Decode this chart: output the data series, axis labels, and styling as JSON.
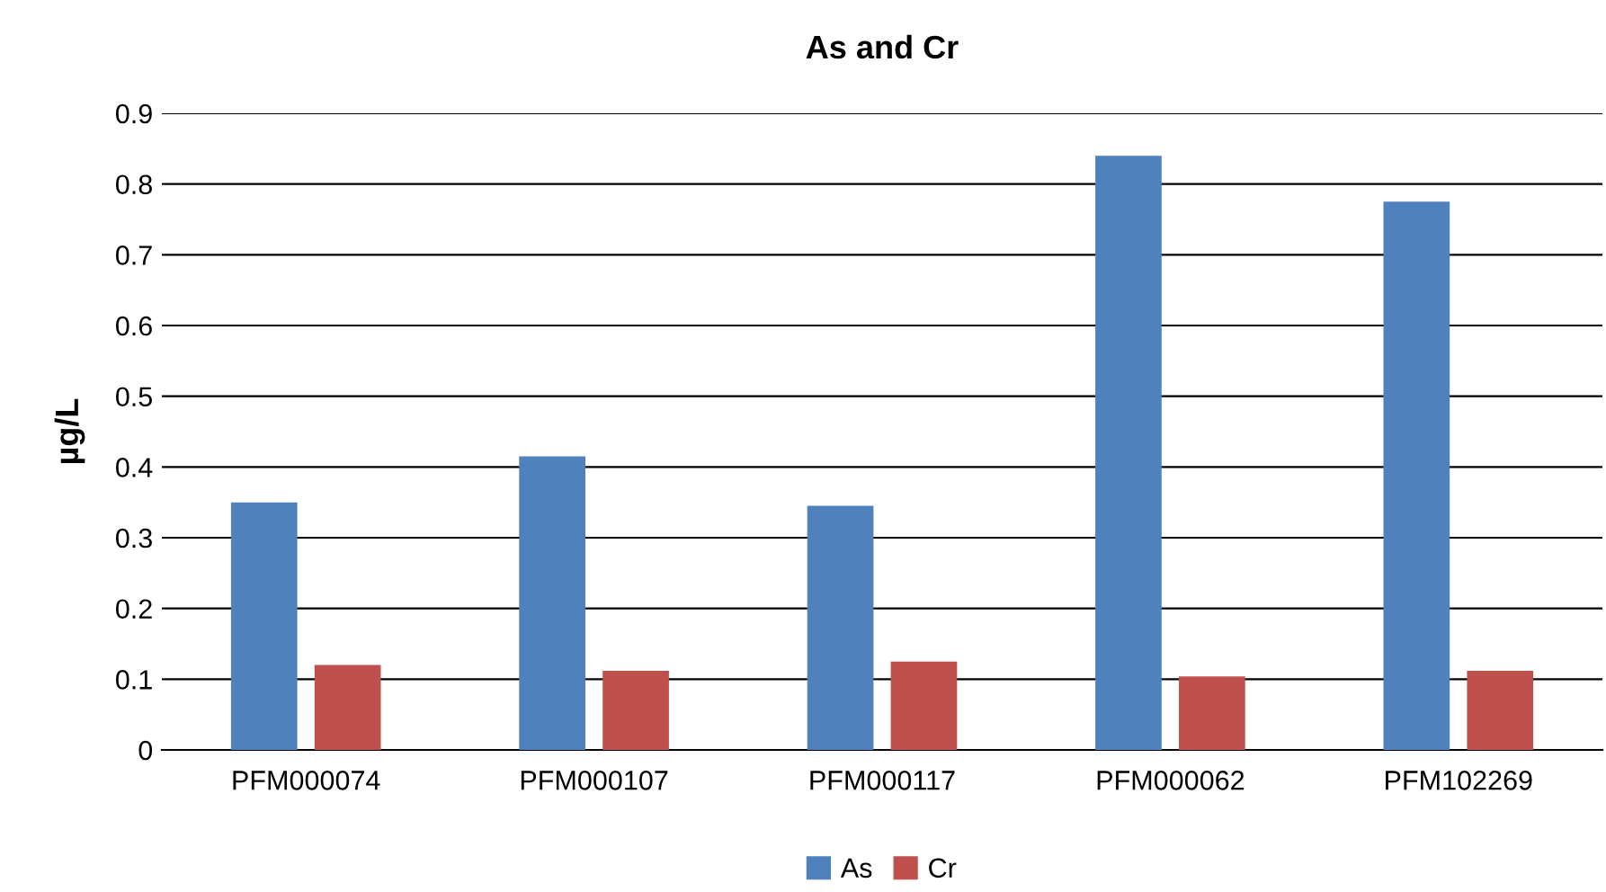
{
  "chart_data": {
    "type": "bar",
    "title": "As and Cr",
    "ylabel": "µg/L",
    "categories": [
      "PFM000074",
      "PFM000107",
      "PFM000117",
      "PFM000062",
      "PFM102269"
    ],
    "series": [
      {
        "name": "As",
        "color": "#4f81bd",
        "values": [
          0.35,
          0.415,
          0.345,
          0.84,
          0.775
        ]
      },
      {
        "name": "Cr",
        "color": "#c0504d",
        "values": [
          0.12,
          0.112,
          0.125,
          0.104,
          0.112
        ]
      }
    ],
    "ylim": [
      0,
      0.9
    ],
    "yticks": [
      0,
      0.1,
      0.2,
      0.3,
      0.4,
      0.5,
      0.6,
      0.7,
      0.8,
      0.9
    ],
    "grid": "y",
    "legend": "bottom"
  }
}
